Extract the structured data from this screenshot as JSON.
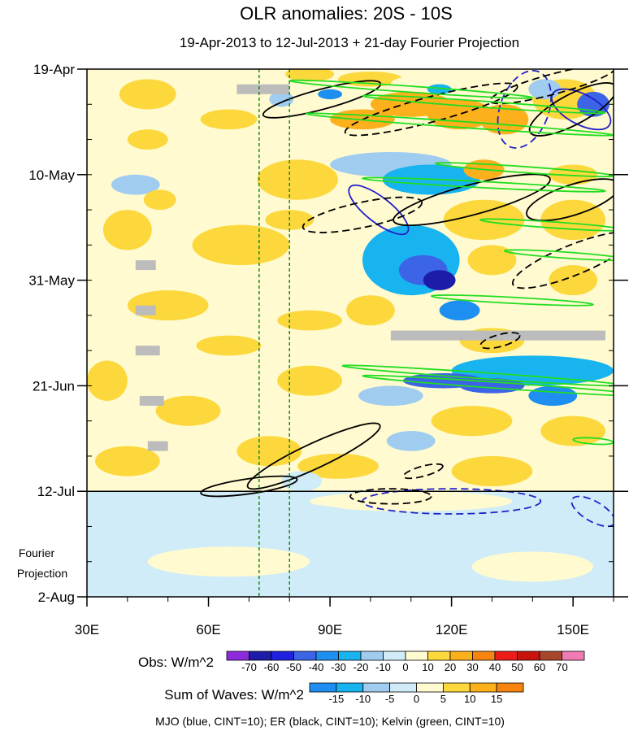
{
  "chart_data": {
    "type": "heatmap",
    "title": "OLR anomalies: 20S - 10S",
    "subtitle": "19-Apr-2013 to 12-Jul-2013 + 21-day Fourier Projection",
    "x_axis": {
      "range_deg": [
        30,
        160
      ],
      "ticks": [
        {
          "value": 30,
          "label": "30E"
        },
        {
          "value": 60,
          "label": "60E"
        },
        {
          "value": 90,
          "label": "90E"
        },
        {
          "value": 120,
          "label": "120E"
        },
        {
          "value": 150,
          "label": "150E"
        }
      ]
    },
    "y_axis": {
      "range_days": [
        0,
        105
      ],
      "ticks": [
        {
          "day": 0,
          "label": "19-Apr"
        },
        {
          "day": 21,
          "label": "10-May"
        },
        {
          "day": 42,
          "label": "31-May"
        },
        {
          "day": 63,
          "label": "21-Jun"
        },
        {
          "day": 84,
          "label": "12-Jul"
        },
        {
          "day": 105,
          "label": "2-Aug"
        }
      ],
      "minor_tick_interval_days": 7
    },
    "projection_start_day": 84,
    "projection_label_line1": "Fourier",
    "projection_label_line2": "Projection",
    "reference_lon_deg": [
      72.5,
      80
    ],
    "obs_colorbar": {
      "label": "Obs: W/m^2",
      "levels": [
        "-70",
        "-60",
        "-50",
        "-40",
        "-30",
        "-20",
        "-10",
        "0",
        "10",
        "20",
        "30",
        "40",
        "50",
        "60",
        "70"
      ],
      "colors": [
        "#8c2bdc",
        "#1c1ca8",
        "#2020e0",
        "#3c64e6",
        "#1e8ef0",
        "#18b4f0",
        "#a0ccf0",
        "#d0ecf8",
        "#fffad0",
        "#fcd83c",
        "#fcb01c",
        "#f88410",
        "#ec1c18",
        "#c8140c",
        "#a8462c",
        "#f07ab4"
      ]
    },
    "waves_colorbar": {
      "label": "Sum of Waves: W/m^2",
      "levels": [
        "-15",
        "-10",
        "-5",
        "0",
        "5",
        "10",
        "15"
      ],
      "colors": [
        "#1e8ef0",
        "#18b4f0",
        "#a0ccf0",
        "#d0ecf8",
        "#fffad0",
        "#fcd83c",
        "#fcb01c",
        "#f88410"
      ]
    },
    "footer": "MJO (blue, CINT=10); ER (black, CINT=10); Kelvin (green, CINT=10)",
    "anomaly_patches": [
      {
        "lon": 85,
        "day": 1,
        "rx": 6,
        "ry": 1.5,
        "v": 15
      },
      {
        "lon": 100,
        "day": 2,
        "rx": 8,
        "ry": 1.5,
        "v": 10
      },
      {
        "lon": 110,
        "day": 3,
        "rx": 5,
        "ry": 1.5,
        "v": 5
      },
      {
        "lon": 110,
        "day": 7,
        "rx": 10,
        "ry": 2.5,
        "v": 25
      },
      {
        "lon": 98,
        "day": 10,
        "rx": 8,
        "ry": 2,
        "v": 20
      },
      {
        "lon": 122,
        "day": 9,
        "rx": 8,
        "ry": 3,
        "v": 25
      },
      {
        "lon": 133,
        "day": 10,
        "rx": 6,
        "ry": 3,
        "v": 20
      },
      {
        "lon": 148,
        "day": 6,
        "rx": 8,
        "ry": 4,
        "v": 15
      },
      {
        "lon": 155,
        "day": 7,
        "rx": 4,
        "ry": 2.5,
        "v": -50
      },
      {
        "lon": 143,
        "day": 4,
        "rx": 4,
        "ry": 2,
        "v": -20
      },
      {
        "lon": 117,
        "day": 4,
        "rx": 3,
        "ry": 1,
        "v": -30
      },
      {
        "lon": 90,
        "day": 5,
        "rx": 3,
        "ry": 1,
        "v": -40
      },
      {
        "lon": 78,
        "day": 6,
        "rx": 3,
        "ry": 1.5,
        "v": -20
      },
      {
        "lon": 45,
        "day": 5,
        "rx": 7,
        "ry": 3,
        "v": 10
      },
      {
        "lon": 65,
        "day": 10,
        "rx": 7,
        "ry": 2,
        "v": 10
      },
      {
        "lon": 45,
        "day": 14,
        "rx": 5,
        "ry": 2,
        "v": 10
      },
      {
        "lon": 105,
        "day": 19,
        "rx": 15,
        "ry": 2.5,
        "v": -20
      },
      {
        "lon": 115,
        "day": 22,
        "rx": 12,
        "ry": 3,
        "v": -30
      },
      {
        "lon": 128,
        "day": 20,
        "rx": 5,
        "ry": 2,
        "v": 20
      },
      {
        "lon": 150,
        "day": 21,
        "rx": 6,
        "ry": 2,
        "v": 15
      },
      {
        "lon": 82,
        "day": 22,
        "rx": 10,
        "ry": 4,
        "v": 10
      },
      {
        "lon": 42,
        "day": 23,
        "rx": 6,
        "ry": 2,
        "v": -15
      },
      {
        "lon": 48,
        "day": 26,
        "rx": 4,
        "ry": 2,
        "v": 10
      },
      {
        "lon": 128,
        "day": 30,
        "rx": 10,
        "ry": 4,
        "v": 15
      },
      {
        "lon": 80,
        "day": 30,
        "rx": 6,
        "ry": 2,
        "v": 10
      },
      {
        "lon": 150,
        "day": 30,
        "rx": 8,
        "ry": 4,
        "v": 15
      },
      {
        "lon": 68,
        "day": 35,
        "rx": 12,
        "ry": 4,
        "v": 10
      },
      {
        "lon": 40,
        "day": 32,
        "rx": 6,
        "ry": 4,
        "v": 15
      },
      {
        "lon": 110,
        "day": 38,
        "rx": 12,
        "ry": 7,
        "v": -30
      },
      {
        "lon": 113,
        "day": 40,
        "rx": 6,
        "ry": 3,
        "v": -50
      },
      {
        "lon": 117,
        "day": 42,
        "rx": 4,
        "ry": 2,
        "v": -70
      },
      {
        "lon": 130,
        "day": 38,
        "rx": 6,
        "ry": 3,
        "v": 10
      },
      {
        "lon": 122,
        "day": 48,
        "rx": 5,
        "ry": 2,
        "v": -40
      },
      {
        "lon": 150,
        "day": 42,
        "rx": 6,
        "ry": 3,
        "v": 10
      },
      {
        "lon": 100,
        "day": 48,
        "rx": 6,
        "ry": 3,
        "v": 15
      },
      {
        "lon": 50,
        "day": 47,
        "rx": 10,
        "ry": 3,
        "v": 10
      },
      {
        "lon": 85,
        "day": 50,
        "rx": 8,
        "ry": 2,
        "v": 15
      },
      {
        "lon": 130,
        "day": 54,
        "rx": 8,
        "ry": 2.5,
        "v": 10
      },
      {
        "lon": 65,
        "day": 55,
        "rx": 8,
        "ry": 2,
        "v": 10
      },
      {
        "lon": 140,
        "day": 60,
        "rx": 20,
        "ry": 3,
        "v": -30
      },
      {
        "lon": 118,
        "day": 62,
        "rx": 10,
        "ry": 1.5,
        "v": -50
      },
      {
        "lon": 130,
        "day": 63,
        "rx": 8,
        "ry": 1.5,
        "v": -50
      },
      {
        "lon": 105,
        "day": 65,
        "rx": 8,
        "ry": 2,
        "v": -20
      },
      {
        "lon": 145,
        "day": 65,
        "rx": 6,
        "ry": 2,
        "v": -40
      },
      {
        "lon": 85,
        "day": 62,
        "rx": 8,
        "ry": 3,
        "v": 15
      },
      {
        "lon": 35,
        "day": 62,
        "rx": 5,
        "ry": 4,
        "v": 15
      },
      {
        "lon": 125,
        "day": 70,
        "rx": 10,
        "ry": 3,
        "v": 15
      },
      {
        "lon": 150,
        "day": 72,
        "rx": 8,
        "ry": 3,
        "v": 10
      },
      {
        "lon": 55,
        "day": 68,
        "rx": 8,
        "ry": 3,
        "v": 10
      },
      {
        "lon": 110,
        "day": 74,
        "rx": 6,
        "ry": 2,
        "v": -20
      },
      {
        "lon": 75,
        "day": 76,
        "rx": 8,
        "ry": 3,
        "v": 10
      },
      {
        "lon": 92,
        "day": 79,
        "rx": 10,
        "ry": 2.5,
        "v": 15
      },
      {
        "lon": 83,
        "day": 82,
        "rx": 5,
        "ry": 2,
        "v": -10
      },
      {
        "lon": 130,
        "day": 80,
        "rx": 10,
        "ry": 3,
        "v": 10
      },
      {
        "lon": 40,
        "day": 78,
        "rx": 8,
        "ry": 3,
        "v": 10
      },
      {
        "lon": 110,
        "day": 86,
        "rx": 25,
        "ry": 2,
        "v": 5
      },
      {
        "lon": 70,
        "day": 90,
        "rx": 30,
        "ry": 4,
        "v": -5
      },
      {
        "lon": 135,
        "day": 92,
        "rx": 20,
        "ry": 4,
        "v": -5
      },
      {
        "lon": 65,
        "day": 98,
        "rx": 20,
        "ry": 3,
        "v": 5
      },
      {
        "lon": 105,
        "day": 100,
        "rx": 20,
        "ry": 3,
        "v": -5
      },
      {
        "lon": 140,
        "day": 99,
        "rx": 15,
        "ry": 3,
        "v": 5
      }
    ],
    "missing_data": [
      {
        "lon0": 67,
        "lon1": 80,
        "day": 4
      },
      {
        "lon0": 42,
        "lon1": 47,
        "day": 39
      },
      {
        "lon0": 42,
        "lon1": 47,
        "day": 48
      },
      {
        "lon0": 42,
        "lon1": 48,
        "day": 56
      },
      {
        "lon0": 43,
        "lon1": 49,
        "day": 66
      },
      {
        "lon0": 45,
        "lon1": 50,
        "day": 75
      },
      {
        "lon0": 105,
        "lon1": 158,
        "day": 53
      }
    ],
    "wave_contours": [
      {
        "wave": "MJO",
        "dashed": true,
        "lon": 138,
        "day": 8,
        "rx": 6,
        "ry": 8,
        "angle": 20
      },
      {
        "wave": "MJO",
        "dashed": false,
        "lon": 102,
        "day": 28,
        "rx": 9,
        "ry": 2.5,
        "angle": 38
      },
      {
        "wave": "MJO",
        "dashed": false,
        "lon": 152,
        "day": 8,
        "rx": 8,
        "ry": 3,
        "angle": 28
      },
      {
        "wave": "MJO",
        "dashed": true,
        "lon": 120,
        "day": 86,
        "rx": 22,
        "ry": 2.5,
        "angle": 0
      },
      {
        "wave": "MJO",
        "dashed": true,
        "lon": 155,
        "day": 88,
        "rx": 6,
        "ry": 2,
        "angle": 30
      },
      {
        "wave": "ER",
        "dashed": false,
        "lon": 88,
        "day": 6,
        "rx": 15,
        "ry": 2,
        "angle": -15
      },
      {
        "wave": "ER",
        "dashed": true,
        "lon": 115,
        "day": 8,
        "rx": 22,
        "ry": 2.5,
        "angle": -15
      },
      {
        "wave": "ER",
        "dashed": true,
        "lon": 145,
        "day": 3,
        "rx": 16,
        "ry": 2,
        "angle": -15
      },
      {
        "wave": "ER",
        "dashed": false,
        "lon": 150,
        "day": 8,
        "rx": 12,
        "ry": 3,
        "angle": -28
      },
      {
        "wave": "ER",
        "dashed": true,
        "lon": 98,
        "day": 29,
        "rx": 15,
        "ry": 2.5,
        "angle": -12
      },
      {
        "wave": "ER",
        "dashed": false,
        "lon": 125,
        "day": 26,
        "rx": 20,
        "ry": 3,
        "angle": -15
      },
      {
        "wave": "ER",
        "dashed": false,
        "lon": 150,
        "day": 26,
        "rx": 12,
        "ry": 3,
        "angle": -18
      },
      {
        "wave": "ER",
        "dashed": true,
        "lon": 150,
        "day": 38,
        "rx": 16,
        "ry": 3,
        "angle": -22
      },
      {
        "wave": "ER",
        "dashed": true,
        "lon": 132,
        "day": 54,
        "rx": 5,
        "ry": 1.2,
        "angle": -15
      },
      {
        "wave": "ER",
        "dashed": false,
        "lon": 86,
        "day": 77,
        "rx": 18,
        "ry": 2.5,
        "angle": -25
      },
      {
        "wave": "ER",
        "dashed": true,
        "lon": 113,
        "day": 80,
        "rx": 5,
        "ry": 1,
        "angle": -15
      },
      {
        "wave": "ER",
        "dashed": false,
        "lon": 70,
        "day": 83,
        "rx": 12,
        "ry": 1.5,
        "angle": -8
      },
      {
        "wave": "ER",
        "dashed": true,
        "lon": 105,
        "day": 85,
        "rx": 10,
        "ry": 1.5,
        "angle": 0
      },
      {
        "wave": "Kelvin",
        "dashed": false,
        "lon": 110,
        "day": 4,
        "rx": 30,
        "ry": 0.6,
        "angle": 4
      },
      {
        "wave": "Kelvin",
        "dashed": false,
        "lon": 128,
        "day": 7,
        "rx": 30,
        "ry": 0.6,
        "angle": 4
      },
      {
        "wave": "Kelvin",
        "dashed": false,
        "lon": 122,
        "day": 11,
        "rx": 38,
        "ry": 0.6,
        "angle": 4
      },
      {
        "wave": "Kelvin",
        "dashed": false,
        "lon": 138,
        "day": 20,
        "rx": 22,
        "ry": 0.6,
        "angle": 4
      },
      {
        "wave": "Kelvin",
        "dashed": false,
        "lon": 128,
        "day": 23,
        "rx": 30,
        "ry": 0.6,
        "angle": 3
      },
      {
        "wave": "Kelvin",
        "dashed": false,
        "lon": 145,
        "day": 31,
        "rx": 18,
        "ry": 0.6,
        "angle": 4
      },
      {
        "wave": "Kelvin",
        "dashed": false,
        "lon": 148,
        "day": 37,
        "rx": 15,
        "ry": 0.6,
        "angle": 4
      },
      {
        "wave": "Kelvin",
        "dashed": false,
        "lon": 135,
        "day": 46,
        "rx": 20,
        "ry": 0.6,
        "angle": 3
      },
      {
        "wave": "Kelvin",
        "dashed": false,
        "lon": 128,
        "day": 61,
        "rx": 35,
        "ry": 0.6,
        "angle": 4
      },
      {
        "wave": "Kelvin",
        "dashed": false,
        "lon": 133,
        "day": 63,
        "rx": 35,
        "ry": 0.6,
        "angle": 4
      },
      {
        "wave": "Kelvin",
        "dashed": false,
        "lon": 155,
        "day": 74,
        "rx": 5,
        "ry": 0.6,
        "angle": 4
      }
    ]
  }
}
